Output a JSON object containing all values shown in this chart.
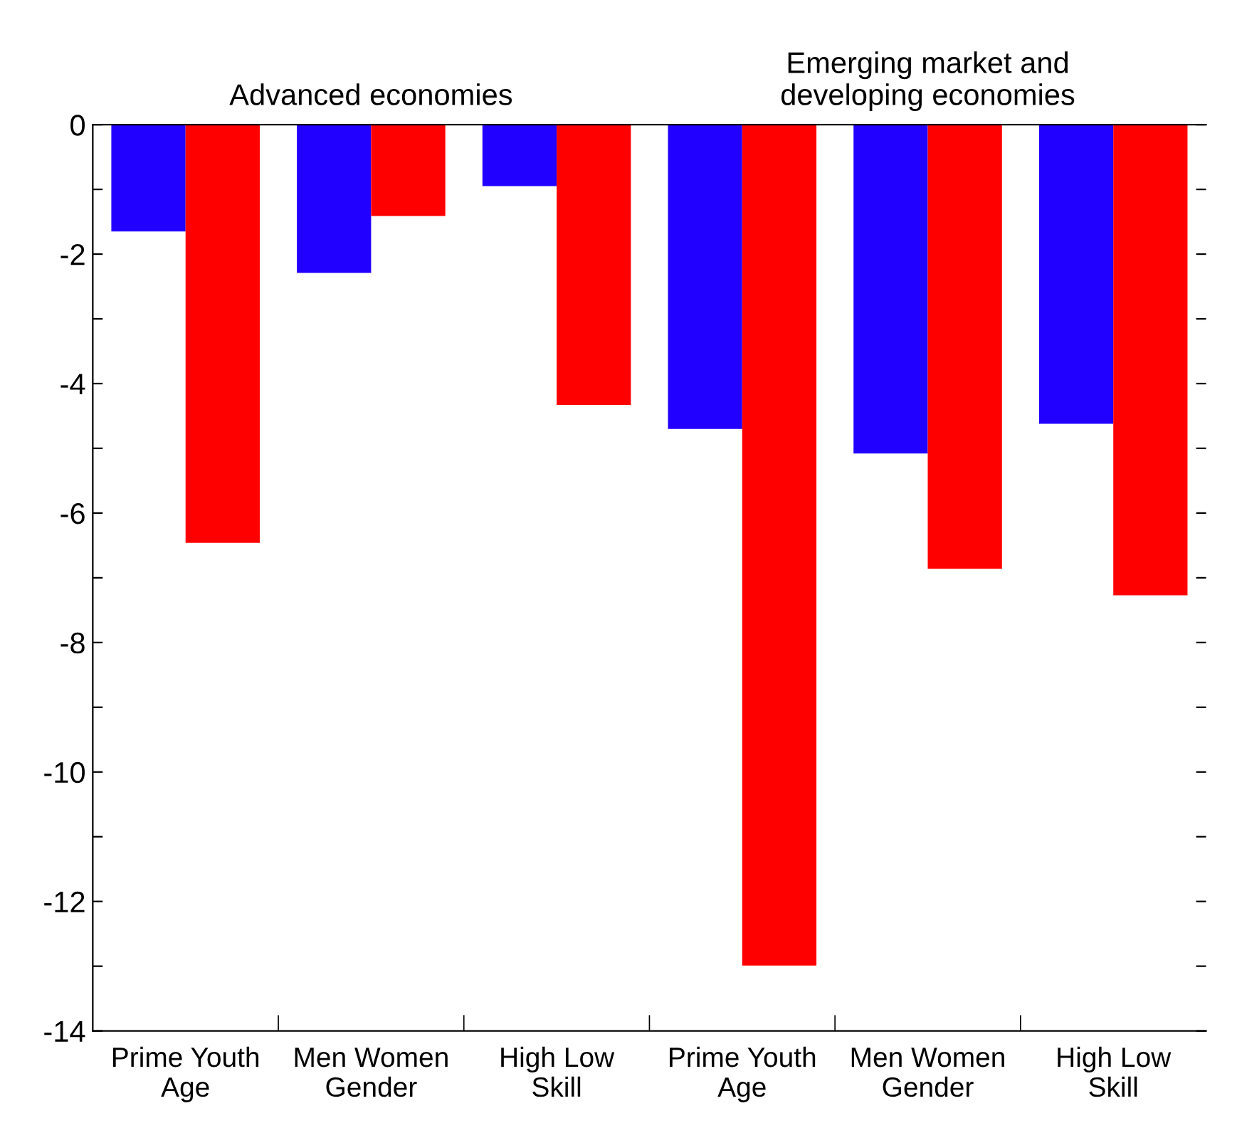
{
  "chart_data": {
    "type": "bar",
    "categories": [
      "Prime Youth\nAge",
      "Men Women\nGender",
      "High Low\nSkill",
      "Prime Youth\nAge",
      "Men Women\nGender",
      "High Low\nSkill"
    ],
    "series": [
      {
        "color": "#2200ff",
        "values": [
          -1.65,
          -2.29,
          -0.95,
          -4.7,
          -5.08,
          -4.62
        ]
      },
      {
        "color": "#ff0000",
        "values": [
          -6.46,
          -1.41,
          -4.33,
          -12.99,
          -6.86,
          -7.27
        ]
      }
    ],
    "ylim": [
      -14,
      0
    ],
    "yticks": [
      0,
      {
        "value": -1,
        "label": null
      },
      -2,
      {
        "value": -3,
        "label": null
      },
      -4,
      {
        "value": -5,
        "label": null
      },
      -6,
      {
        "value": -7,
        "label": null
      },
      -8,
      {
        "value": -9,
        "label": null
      },
      -10,
      {
        "value": -11,
        "label": null
      },
      -12,
      {
        "value": -13,
        "label": null
      },
      -14
    ],
    "annotations": [
      "Advanced economies",
      "Emerging market and\ndeveloping economies"
    ],
    "grid": false
  }
}
